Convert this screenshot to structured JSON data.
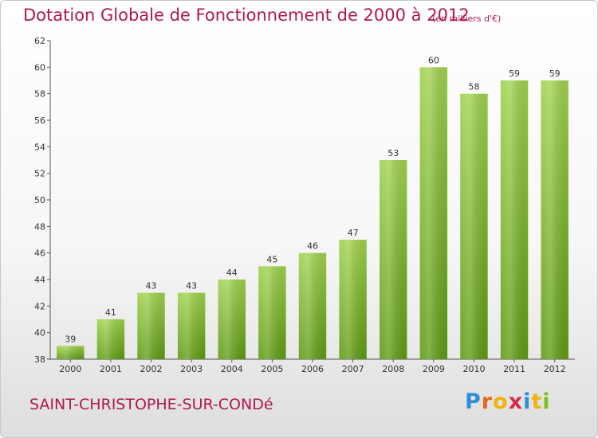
{
  "header": {
    "title": "Dotation Globale de Fonctionnement de 2000 à 2012",
    "subtitle": "(en milliers d'€)"
  },
  "footer": {
    "commune": "SAINT-CHRISTOPHE-SUR-CONDé",
    "logo_letters": [
      "P",
      "r",
      "o",
      "x",
      "i",
      "t",
      "i"
    ],
    "logo_colors": [
      "#2a8fd6",
      "#e8671c",
      "#f2b20c",
      "#d62a4a",
      "#2a8fd6",
      "#f2b20c",
      "#7cc21e"
    ]
  },
  "chart_data": {
    "type": "bar",
    "title": "Dotation Globale de Fonctionnement de 2000 à 2012",
    "subtitle": "(en milliers d'€)",
    "categories": [
      "2000",
      "2001",
      "2002",
      "2003",
      "2004",
      "2005",
      "2006",
      "2007",
      "2008",
      "2009",
      "2010",
      "2011",
      "2012"
    ],
    "values": [
      39,
      41,
      43,
      43,
      44,
      45,
      46,
      47,
      53,
      60,
      58,
      59,
      59
    ],
    "ylim": [
      38,
      62
    ],
    "yticks": [
      38,
      40,
      42,
      44,
      46,
      48,
      50,
      52,
      54,
      56,
      58,
      60,
      62
    ],
    "grid": false,
    "legend": "none",
    "bar_color_top": "#9fd24e",
    "bar_color_bottom": "#5e9a12"
  }
}
